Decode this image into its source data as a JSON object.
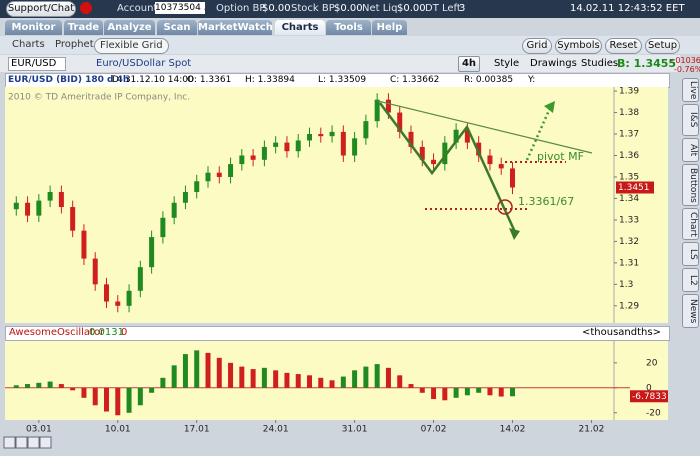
{
  "header": {
    "support": "Support/Chat",
    "account_label": "Account",
    "account": "10373504 ...",
    "option_bp_label": "Option BP",
    "option_bp": "$0.00",
    "stock_bp_label": "Stock BP",
    "stock_bp": "$0.00",
    "net_liq_label": "Net Liq",
    "net_liq": "$0.00",
    "dt_left_label": "DT Left",
    "dt_left": "3",
    "datetime": "14.02.11 12:43:52 EET"
  },
  "tabs": [
    "Monitor",
    "Trade",
    "Analyze",
    "Scan",
    "MarketWatch",
    "Charts",
    "Tools",
    "Help"
  ],
  "active_tab": "Charts",
  "subtabs": [
    "Charts",
    "Prophet",
    "Flexible Grid"
  ],
  "active_subtab": "Flexible Grid",
  "layout_buttons": [
    "Grid",
    "Symbols",
    "Reset",
    "Setup"
  ],
  "symbol_bar": {
    "symbol": "EUR/USD",
    "description": "Euro/USDollar Spot",
    "aggregation": "4h",
    "style": "Style",
    "drawings": "Drawings",
    "studies": "Studies",
    "bid": "B: 1.3455",
    "change": "-.01036",
    "change_pct": "-0.76%"
  },
  "info": [
    "EUR/USD (BID) 180 d 4h",
    "D: 31.12.10 14:00",
    "O: 1.3361",
    "H: 1.33894",
    "L: 1.33509",
    "C: 1.33662",
    "R: 0.00385",
    "Y:"
  ],
  "side_tabs": [
    "Live",
    "I&S",
    "Alt",
    "Buttons",
    "Chart",
    "LS",
    "L2",
    "News"
  ],
  "chart_data": [
    {
      "type": "candlestick",
      "copyright": "2010 © TD Ameritrade IP Company, Inc.",
      "annotations": [
        "pivot MF",
        "1.3361/67"
      ],
      "x": [
        1,
        2,
        3,
        4,
        5,
        6,
        7,
        8,
        9,
        10,
        11,
        12,
        13,
        14,
        15,
        16,
        17,
        18,
        19,
        20,
        21,
        22,
        23,
        24,
        25,
        26,
        27,
        28,
        29,
        30,
        31,
        32,
        33,
        34,
        35,
        36,
        37,
        38,
        39,
        40,
        41,
        42,
        43,
        44,
        45
      ],
      "open": [
        1.335,
        1.338,
        1.332,
        1.339,
        1.343,
        1.336,
        1.325,
        1.312,
        1.3,
        1.292,
        1.29,
        1.297,
        1.308,
        1.322,
        1.331,
        1.338,
        1.343,
        1.348,
        1.352,
        1.35,
        1.356,
        1.36,
        1.358,
        1.364,
        1.366,
        1.362,
        1.367,
        1.37,
        1.369,
        1.371,
        1.36,
        1.368,
        1.376,
        1.386,
        1.38,
        1.371,
        1.364,
        1.358,
        1.356,
        1.366,
        1.372,
        1.366,
        1.36,
        1.356,
        1.354
      ],
      "high": [
        1.341,
        1.341,
        1.342,
        1.346,
        1.346,
        1.339,
        1.328,
        1.315,
        1.303,
        1.295,
        1.3,
        1.311,
        1.325,
        1.334,
        1.341,
        1.346,
        1.351,
        1.355,
        1.355,
        1.359,
        1.363,
        1.363,
        1.367,
        1.369,
        1.369,
        1.37,
        1.373,
        1.373,
        1.374,
        1.374,
        1.371,
        1.379,
        1.389,
        1.389,
        1.383,
        1.374,
        1.367,
        1.361,
        1.369,
        1.375,
        1.375,
        1.369,
        1.363,
        1.359,
        1.357
      ],
      "low": [
        1.332,
        1.329,
        1.329,
        1.336,
        1.333,
        1.322,
        1.309,
        1.297,
        1.289,
        1.287,
        1.287,
        1.294,
        1.305,
        1.319,
        1.328,
        1.335,
        1.34,
        1.345,
        1.347,
        1.347,
        1.353,
        1.355,
        1.355,
        1.361,
        1.359,
        1.359,
        1.364,
        1.366,
        1.366,
        1.357,
        1.357,
        1.365,
        1.373,
        1.377,
        1.368,
        1.361,
        1.355,
        1.353,
        1.353,
        1.363,
        1.363,
        1.357,
        1.353,
        1.351,
        1.342
      ],
      "close": [
        1.338,
        1.332,
        1.339,
        1.343,
        1.336,
        1.325,
        1.312,
        1.3,
        1.292,
        1.29,
        1.297,
        1.308,
        1.322,
        1.331,
        1.338,
        1.343,
        1.348,
        1.352,
        1.35,
        1.356,
        1.36,
        1.358,
        1.364,
        1.366,
        1.362,
        1.367,
        1.37,
        1.369,
        1.371,
        1.36,
        1.368,
        1.376,
        1.386,
        1.38,
        1.371,
        1.364,
        1.358,
        1.356,
        1.366,
        1.372,
        1.366,
        1.36,
        1.356,
        1.354,
        1.3451
      ],
      "xlim": [
        0,
        54
      ],
      "ylim": [
        1.282,
        1.3919
      ],
      "yticks": [
        1.29,
        1.3,
        1.31,
        1.32,
        1.33,
        1.34,
        1.35,
        1.36,
        1.37,
        1.38,
        1.39
      ],
      "up_color": "#1f8a1f",
      "down_color": "#d0201e"
    },
    {
      "type": "bar",
      "title": "AwesomeOscillator",
      "value_text": "0.0131",
      "zero_text": "0",
      "units": "<thousandths>",
      "x": [
        1,
        2,
        3,
        4,
        5,
        6,
        7,
        8,
        9,
        10,
        11,
        12,
        13,
        14,
        15,
        16,
        17,
        18,
        19,
        20,
        21,
        22,
        23,
        24,
        25,
        26,
        27,
        28,
        29,
        30,
        31,
        32,
        33,
        34,
        35,
        36,
        37,
        38,
        39,
        40,
        41,
        42,
        43,
        44,
        45
      ],
      "values": [
        2,
        3,
        4,
        5,
        3,
        -2,
        -8,
        -14,
        -19,
        -22,
        -20,
        -14,
        -4,
        8,
        18,
        27,
        30,
        28,
        24,
        20,
        17,
        15,
        16,
        14,
        12,
        11,
        10,
        8,
        6,
        9,
        14,
        17,
        19,
        16,
        10,
        3,
        -4,
        -9,
        -10,
        -8,
        -6,
        -4,
        -6,
        -7,
        -6.7833
      ],
      "xlim": [
        0,
        54
      ],
      "ylim": [
        -25.8,
        37.5
      ],
      "yticks": [
        -20,
        0,
        20
      ],
      "xticks": [
        {
          "value": 3,
          "label": "03.01"
        },
        {
          "value": 10,
          "label": "10.01"
        },
        {
          "value": 17,
          "label": "17.01"
        },
        {
          "value": 24,
          "label": "24.01"
        },
        {
          "value": 31,
          "label": "31.01"
        },
        {
          "value": 38,
          "label": "07.02"
        },
        {
          "value": 45,
          "label": "14.02"
        },
        {
          "value": 52,
          "label": "21.02"
        }
      ],
      "up_color": "#1f8a1f",
      "down_color": "#d0201e",
      "zero_color": "#c04040"
    }
  ]
}
